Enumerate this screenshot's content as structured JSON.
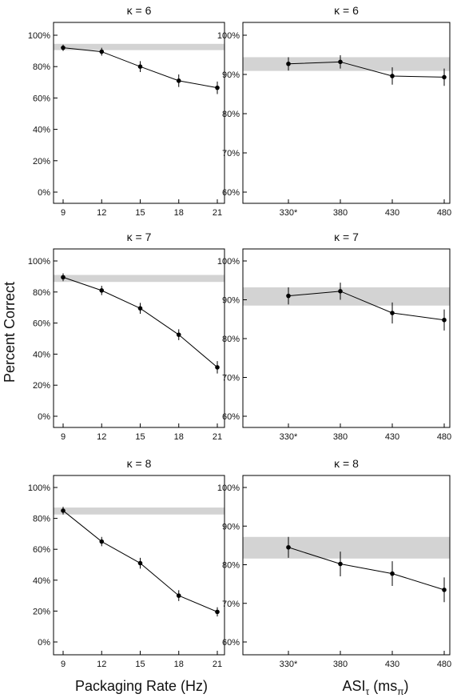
{
  "figure": {
    "ylabel": "Percent Correct",
    "xlabel_left": "Packaging Rate (Hz)",
    "xlabel_right_main": "ASI",
    "xlabel_right_sub": "τ",
    "xlabel_right_unit": "(ms",
    "xlabel_right_unit_sub": "π",
    "xlabel_right_close": ")",
    "colors": {
      "band": "#d3d3d3",
      "line": "#000000",
      "frame": "#000000"
    }
  },
  "chart_data": [
    {
      "type": "line",
      "title": "κ = 6",
      "categories": [
        "9",
        "12",
        "15",
        "18",
        "21"
      ],
      "x": [
        9,
        12,
        15,
        18,
        21
      ],
      "values": [
        92,
        89.5,
        80,
        71,
        66.5
      ],
      "error": [
        2,
        2.5,
        3.5,
        4,
        4
      ],
      "band": [
        90.5,
        94.5
      ],
      "ylim": [
        0,
        100
      ],
      "yticks": [
        0,
        20,
        40,
        60,
        80,
        100
      ],
      "ytick_labels": [
        "0%",
        "20%",
        "40%",
        "60%",
        "80%",
        "100%"
      ],
      "xlim": [
        9,
        21
      ]
    },
    {
      "type": "line",
      "title": "κ = 6",
      "categories": [
        "330*",
        "380",
        "430",
        "480"
      ],
      "x": [
        330,
        380,
        430,
        480
      ],
      "values": [
        92.7,
        93.2,
        89.6,
        89.3
      ],
      "error": [
        1.7,
        1.7,
        2.2,
        2.2
      ],
      "band": [
        90.9,
        94.4
      ],
      "ylim": [
        60,
        100
      ],
      "yticks": [
        60,
        70,
        80,
        90,
        100
      ],
      "ytick_labels": [
        "60%",
        "70%",
        "80%",
        "90%",
        "100%"
      ],
      "xlim": [
        330,
        480
      ]
    },
    {
      "type": "line",
      "title": "κ = 7",
      "categories": [
        "9",
        "12",
        "15",
        "18",
        "21"
      ],
      "x": [
        9,
        12,
        15,
        18,
        21
      ],
      "values": [
        89.5,
        81,
        69.5,
        52.5,
        31.5
      ],
      "error": [
        2.5,
        3,
        3.5,
        3.5,
        4
      ],
      "band": [
        86.5,
        91
      ],
      "ylim": [
        0,
        100
      ],
      "yticks": [
        0,
        20,
        40,
        60,
        80,
        100
      ],
      "ytick_labels": [
        "0%",
        "20%",
        "40%",
        "60%",
        "80%",
        "100%"
      ],
      "xlim": [
        9,
        21
      ]
    },
    {
      "type": "line",
      "title": "κ = 7",
      "categories": [
        "330*",
        "380",
        "430",
        "480"
      ],
      "x": [
        330,
        380,
        430,
        480
      ],
      "values": [
        91,
        92.2,
        86.6,
        84.8
      ],
      "error": [
        2.2,
        2.2,
        2.7,
        2.7
      ],
      "band": [
        88.5,
        93.2
      ],
      "ylim": [
        60,
        100
      ],
      "yticks": [
        60,
        70,
        80,
        90,
        100
      ],
      "ytick_labels": [
        "60%",
        "70%",
        "80%",
        "90%",
        "100%"
      ],
      "xlim": [
        330,
        480
      ]
    },
    {
      "type": "line",
      "title": "κ = 8",
      "categories": [
        "9",
        "12",
        "15",
        "18",
        "21"
      ],
      "x": [
        9,
        12,
        15,
        18,
        21
      ],
      "values": [
        85,
        65,
        51,
        30,
        19.5
      ],
      "error": [
        2.5,
        3,
        3.5,
        3.5,
        3
      ],
      "band": [
        82.5,
        87
      ],
      "ylim": [
        0,
        100
      ],
      "yticks": [
        0,
        20,
        40,
        60,
        80,
        100
      ],
      "ytick_labels": [
        "0%",
        "20%",
        "40%",
        "60%",
        "80%",
        "100%"
      ],
      "xlim": [
        9,
        21
      ]
    },
    {
      "type": "line",
      "title": "κ = 8",
      "categories": [
        "330*",
        "380",
        "430",
        "480"
      ],
      "x": [
        330,
        380,
        430,
        480
      ],
      "values": [
        84.5,
        80.2,
        77.7,
        73.5
      ],
      "error": [
        2.7,
        3.2,
        3.2,
        3.2
      ],
      "band": [
        81.6,
        87.2
      ],
      "ylim": [
        60,
        100
      ],
      "yticks": [
        60,
        70,
        80,
        90,
        100
      ],
      "ytick_labels": [
        "60%",
        "70%",
        "80%",
        "90%",
        "100%"
      ],
      "xlim": [
        330,
        480
      ]
    }
  ]
}
